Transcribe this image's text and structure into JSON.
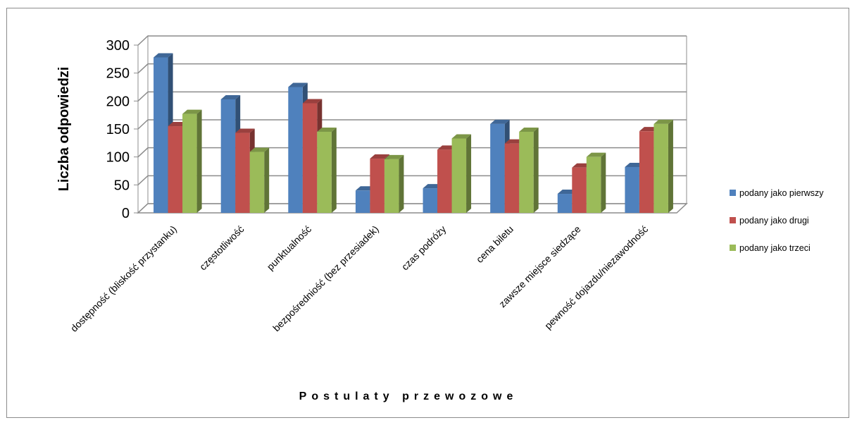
{
  "chart_data": {
    "type": "bar",
    "title": "",
    "xlabel": "Postulaty przewozowe",
    "ylabel": "Liczba odpowiedzi",
    "ylim": [
      0,
      300
    ],
    "yticks": [
      0,
      50,
      100,
      150,
      200,
      250,
      300
    ],
    "grid": true,
    "legend_position": "right",
    "categories": [
      "dostępność (bliskość przystanku)",
      "częstotliwość",
      "punktualność",
      "bezpośredniość (bez przesiadek)",
      "czas podróży",
      "cena biletu",
      "zawsze miejsce siedzące",
      "pewność dojazdu/niezawodność"
    ],
    "series": [
      {
        "name": "podany jako pierwszy",
        "color": "#4f81bd",
        "values": [
          278,
          203,
          225,
          40,
          44,
          159,
          34,
          82
        ]
      },
      {
        "name": "podany jako drugi",
        "color": "#c0504d",
        "values": [
          155,
          143,
          196,
          97,
          113,
          124,
          81,
          146
        ]
      },
      {
        "name": "podany jako trzeci",
        "color": "#9bbb59",
        "values": [
          177,
          109,
          145,
          96,
          133,
          145,
          100,
          159
        ]
      }
    ]
  }
}
